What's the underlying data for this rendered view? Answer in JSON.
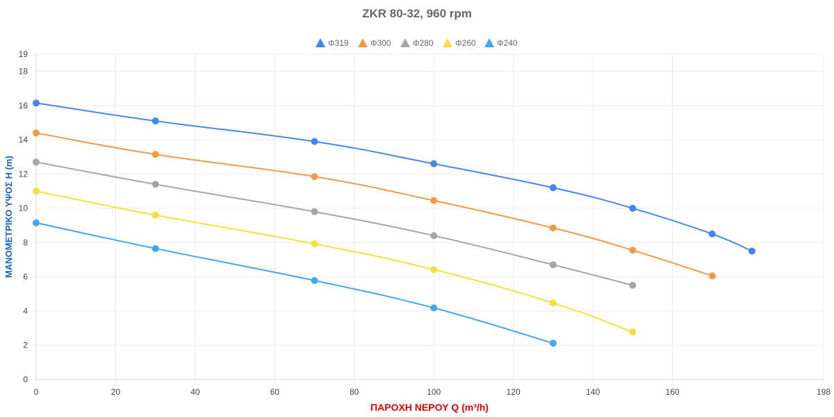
{
  "chart_data": {
    "type": "line",
    "title": "ZKR 80-32, 960 rpm",
    "xlabel": "ΠΑΡΟΧΗ ΝΕΡΟΥ Q (m³/h)",
    "ylabel": "ΜΑΝΟΜΕΤΡΙΚΟ ΥΨΟΣ H (m)",
    "xlim": [
      0,
      198
    ],
    "ylim": [
      0,
      19
    ],
    "xticks": [
      0,
      20,
      40,
      60,
      80,
      100,
      120,
      140,
      160,
      198
    ],
    "yticks": [
      0,
      2,
      4,
      6,
      8,
      10,
      12,
      14,
      16,
      18,
      19
    ],
    "grid": true,
    "legend_position": "top",
    "legend_marker": "triangle",
    "smooth": true,
    "series": [
      {
        "name": "Φ319",
        "color": "#4285f4",
        "x": [
          0,
          30,
          70,
          100,
          130,
          150,
          170,
          180
        ],
        "y": [
          16.15,
          15.1,
          13.9,
          12.6,
          11.2,
          10.0,
          8.5,
          7.5
        ]
      },
      {
        "name": "Φ300",
        "color": "#f59a44",
        "x": [
          0,
          30,
          70,
          100,
          130,
          150,
          170
        ],
        "y": [
          14.4,
          13.15,
          11.85,
          10.45,
          8.85,
          7.55,
          6.05
        ]
      },
      {
        "name": "Φ280",
        "color": "#a5a5a5",
        "x": [
          0,
          30,
          70,
          100,
          130,
          150
        ],
        "y": [
          12.7,
          11.4,
          9.8,
          8.4,
          6.7,
          5.5
        ]
      },
      {
        "name": "Φ260",
        "color": "#f5e03b",
        "x": [
          0,
          30,
          70,
          100,
          130,
          150
        ],
        "y": [
          11.0,
          9.6,
          7.92,
          6.42,
          4.47,
          2.77
        ]
      },
      {
        "name": "Φ240",
        "color": "#42a5f5",
        "x": [
          0,
          30,
          70,
          100,
          130
        ],
        "y": [
          9.15,
          7.65,
          5.78,
          4.18,
          2.12
        ]
      }
    ]
  }
}
